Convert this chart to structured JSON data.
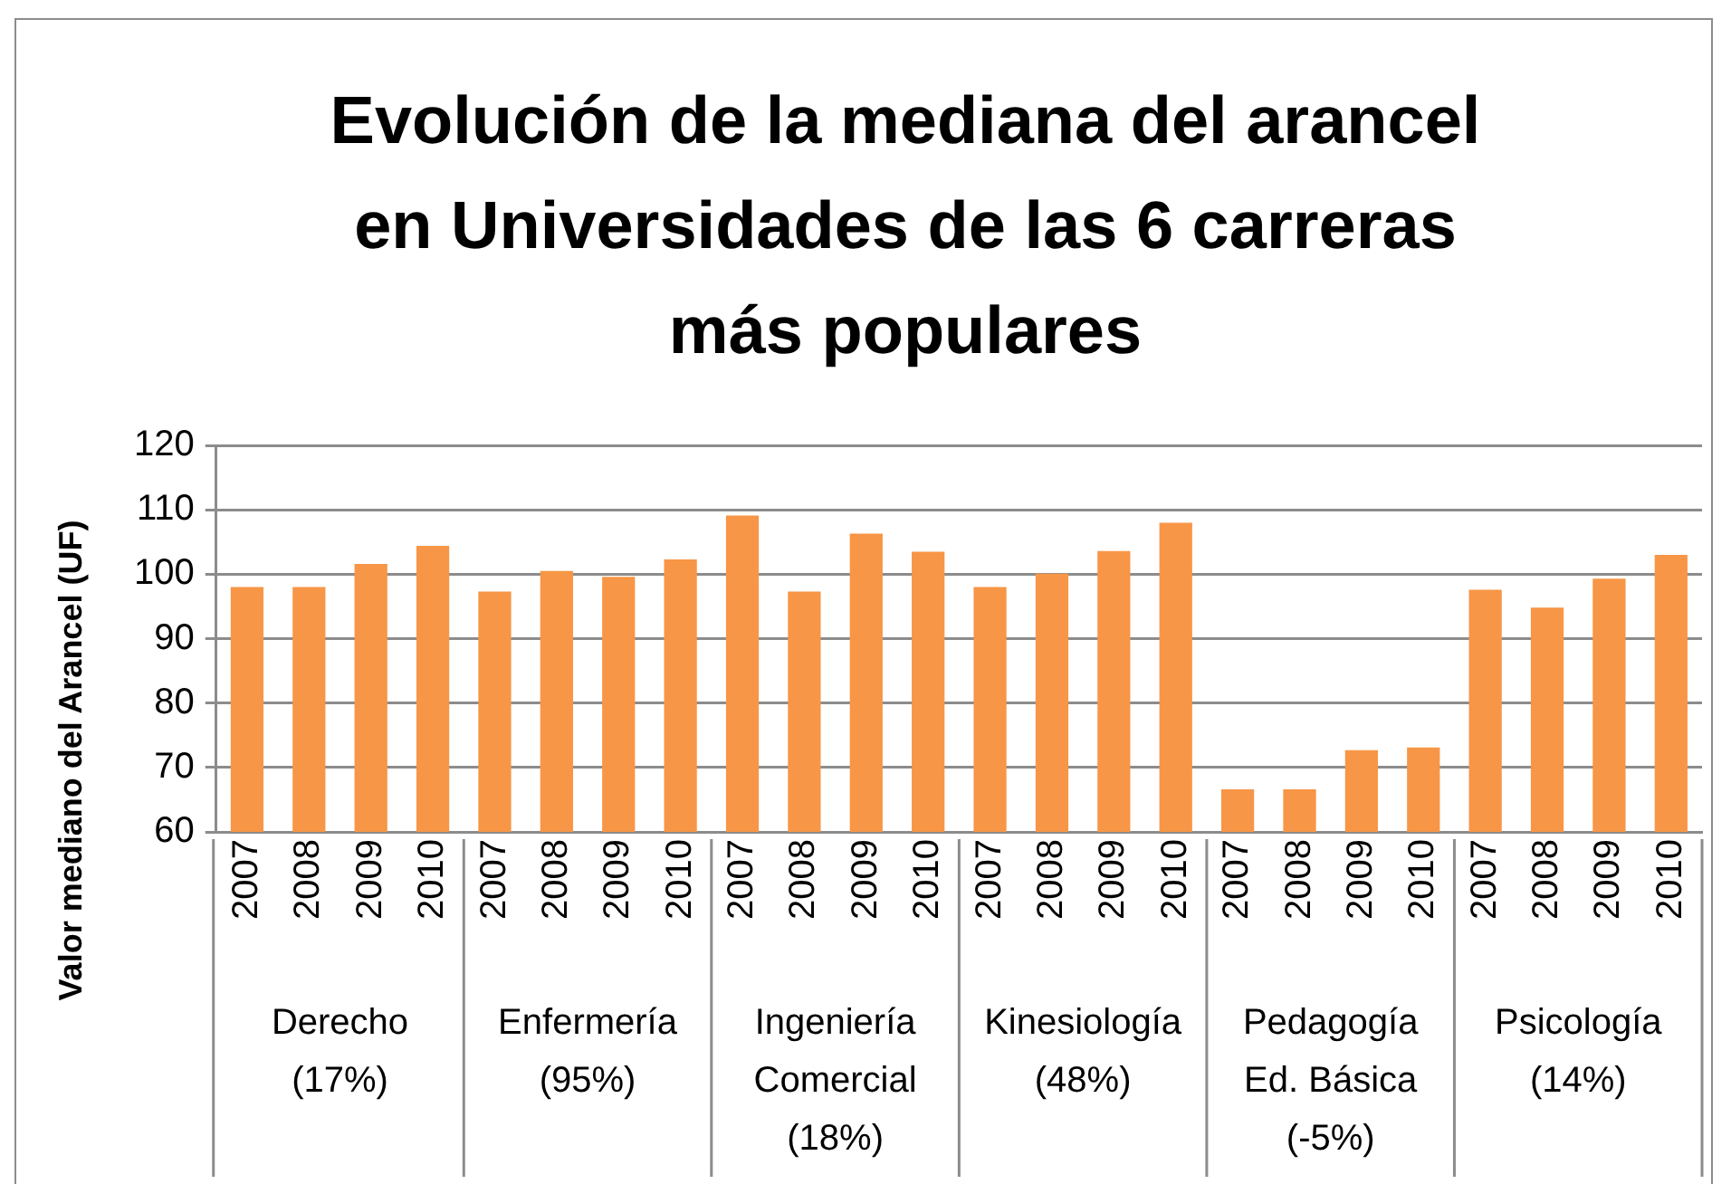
{
  "chart_data": {
    "type": "bar",
    "title": "Evolución de la mediana del arancel en Universidades de las 6 carreras más populares",
    "ylabel": "Valor mediano del Arancel (UF)",
    "categories": [
      "2007",
      "2008",
      "2009",
      "2010",
      "2007",
      "2008",
      "2009",
      "2010",
      "2007",
      "2008",
      "2009",
      "2010",
      "2007",
      "2008",
      "2009",
      "2010",
      "2007",
      "2008",
      "2009",
      "2010",
      "2007",
      "2008",
      "2009",
      "2010"
    ],
    "values": [
      98,
      98,
      101.6,
      104.4,
      97.3,
      100.5,
      99.6,
      102.3,
      109.1,
      97.3,
      106.3,
      103.5,
      98,
      100.1,
      103.6,
      108,
      66.6,
      66.6,
      72.7,
      73.1,
      97.6,
      94.8,
      99.3,
      103
    ],
    "color": "#f79646",
    "ylim": [
      60,
      120
    ],
    "yticks": [
      60,
      70,
      80,
      90,
      100,
      110,
      120
    ],
    "grid": "y",
    "legend": false,
    "annotations": [
      "Derecho (17%)",
      "Enfermería (95%)",
      "Ingeniería Comercial (18%)",
      "Kinesiología (48%)",
      "Pedagogía Ed. Básica (-5%)",
      "Psicología (14%)"
    ]
  }
}
